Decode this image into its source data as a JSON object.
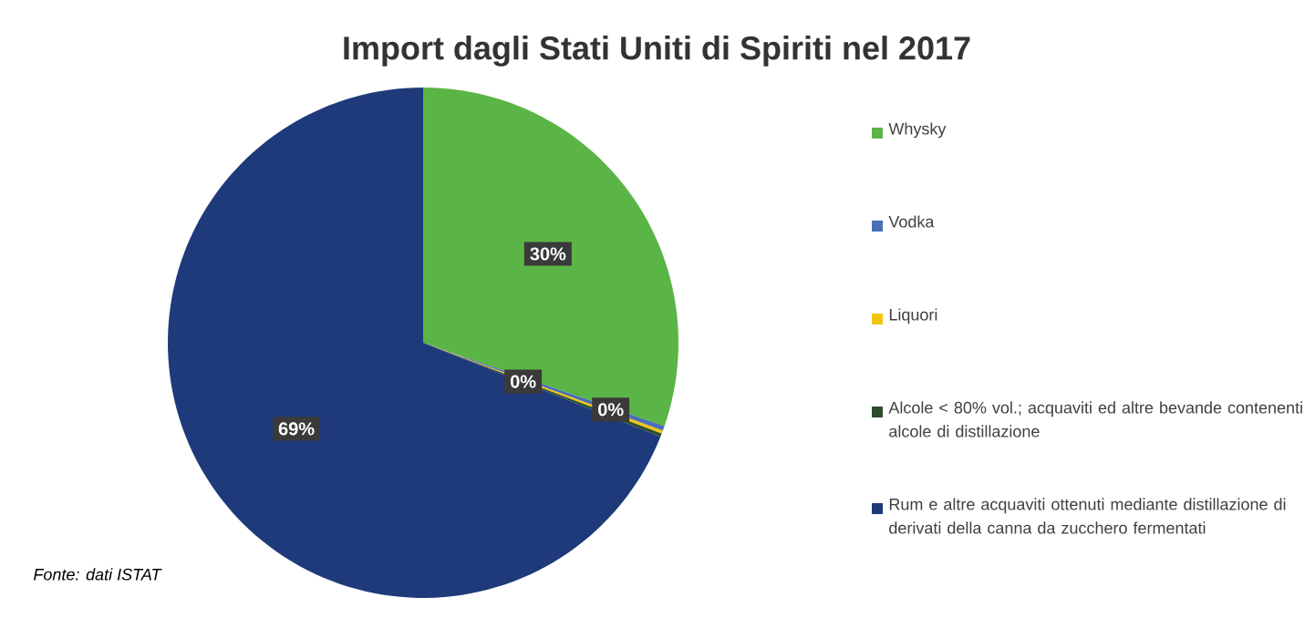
{
  "chart_data": {
    "type": "pie",
    "title": "Import dagli Stati Uniti di Spiriti nel 2017",
    "categories": [
      "Whysky",
      "Vodka",
      "Liquori",
      "Alcole < 80% vol.; acquaviti ed altre bevande contenenti alcole di distillazione",
      "Rum e altre acquaviti ottenuti mediante distillazione di derivati della canna da zucchero fermentati"
    ],
    "values": [
      30.3,
      0.3,
      0.2,
      0.2,
      69.0
    ],
    "colors": [
      "#5bb446",
      "#4a6fb5",
      "#f2c40f",
      "#2d4d2a",
      "#1f3a7a"
    ],
    "value_labels": [
      "30%",
      "0%",
      null,
      "0%",
      "69%"
    ],
    "legend": "right",
    "annotations": [
      "*Fonte: dati ISTAT*"
    ]
  }
}
